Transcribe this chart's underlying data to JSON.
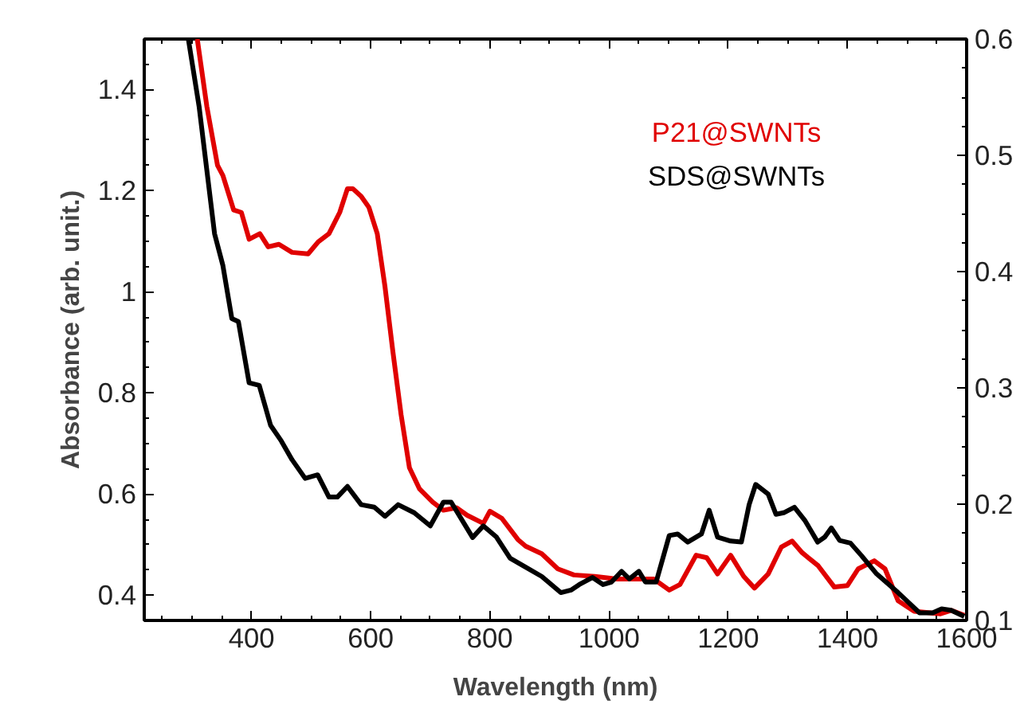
{
  "chart_data": {
    "type": "line",
    "xlabel": "Wavelength (nm)",
    "ylabel": "Absorbance (arb. unit.)",
    "xlim": [
      220,
      1600
    ],
    "xticks": [
      400,
      600,
      800,
      1000,
      1200,
      1400,
      1600
    ],
    "ylim": [
      0.35,
      1.5
    ],
    "yticks": [
      0.4,
      0.6,
      0.8,
      1,
      1.2,
      1.4
    ],
    "y2lim": [
      0.1,
      0.6
    ],
    "y2ticks": [
      0.1,
      0.2,
      0.3,
      0.4,
      0.5,
      0.6
    ],
    "legend": "top right",
    "grid": false,
    "line_style": "solid",
    "series": [
      {
        "name": "P21@SWNTs",
        "color": "#e00000",
        "x": [
          309,
          325,
          343,
          352,
          370,
          383,
          396,
          414,
          428,
          446,
          468,
          495,
          512,
          530,
          548,
          561,
          570,
          584,
          597,
          611,
          624,
          637,
          651,
          665,
          682,
          704,
          722,
          744,
          762,
          789,
          800,
          820,
          847,
          860,
          887,
          914,
          941,
          976,
          1012,
          1075,
          1101,
          1119,
          1146,
          1164,
          1182,
          1204,
          1226,
          1244,
          1267,
          1289,
          1307,
          1324,
          1351,
          1378,
          1400,
          1418,
          1445,
          1463,
          1485,
          1512,
          1556,
          1574,
          1596
        ],
        "values": [
          1.5,
          1.367,
          1.25,
          1.23,
          1.162,
          1.157,
          1.104,
          1.115,
          1.089,
          1.094,
          1.078,
          1.075,
          1.099,
          1.115,
          1.157,
          1.204,
          1.204,
          1.189,
          1.167,
          1.115,
          1.01,
          0.884,
          0.757,
          0.652,
          0.61,
          0.584,
          0.568,
          0.573,
          0.558,
          0.542,
          0.566,
          0.552,
          0.51,
          0.497,
          0.482,
          0.452,
          0.44,
          0.437,
          0.432,
          0.432,
          0.41,
          0.421,
          0.479,
          0.474,
          0.442,
          0.479,
          0.437,
          0.414,
          0.442,
          0.495,
          0.507,
          0.484,
          0.458,
          0.416,
          0.419,
          0.452,
          0.468,
          0.452,
          0.389,
          0.368,
          0.363,
          0.37,
          0.36
        ]
      },
      {
        "name": "SDS@SWNTs",
        "color": "#000000",
        "x": [
          294,
          312,
          325,
          338,
          352,
          367,
          378,
          396,
          413,
          432,
          450,
          468,
          490,
          511,
          530,
          544,
          561,
          584,
          606,
          624,
          646,
          673,
          700,
          722,
          735,
          771,
          789,
          811,
          834,
          856,
          887,
          919,
          936,
          950,
          972,
          990,
          1004,
          1021,
          1034,
          1050,
          1061,
          1079,
          1101,
          1115,
          1132,
          1155,
          1168,
          1182,
          1204,
          1222,
          1235,
          1246,
          1267,
          1280,
          1293,
          1311,
          1329,
          1350,
          1362,
          1373,
          1387,
          1405,
          1423,
          1449,
          1485,
          1521,
          1543,
          1558,
          1574,
          1596
        ],
        "values": [
          1.5,
          1.367,
          1.241,
          1.115,
          1.052,
          0.947,
          0.941,
          0.82,
          0.815,
          0.736,
          0.705,
          0.668,
          0.631,
          0.638,
          0.594,
          0.594,
          0.615,
          0.579,
          0.574,
          0.556,
          0.579,
          0.563,
          0.537,
          0.584,
          0.584,
          0.514,
          0.537,
          0.515,
          0.473,
          0.458,
          0.437,
          0.405,
          0.41,
          0.421,
          0.435,
          0.421,
          0.426,
          0.447,
          0.432,
          0.447,
          0.426,
          0.426,
          0.518,
          0.521,
          0.505,
          0.521,
          0.568,
          0.515,
          0.507,
          0.505,
          0.579,
          0.619,
          0.6,
          0.56,
          0.563,
          0.574,
          0.547,
          0.505,
          0.515,
          0.533,
          0.508,
          0.503,
          0.479,
          0.442,
          0.405,
          0.365,
          0.365,
          0.373,
          0.37,
          0.358
        ]
      }
    ]
  }
}
